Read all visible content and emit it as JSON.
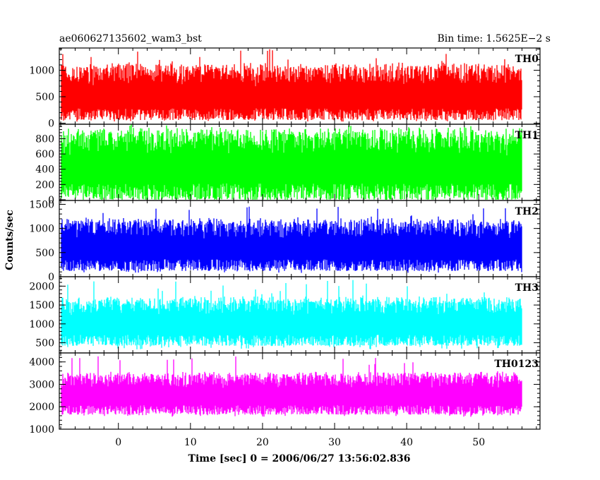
{
  "chart_data": {
    "type": "line",
    "title": "ae060627135602_wam3_bst",
    "subtitle": "Bin time: 1.5625E−2 s",
    "xlabel": "Time [sec] 0 = 2006/06/27 13:56:02.836",
    "ylabel": "Counts/sec",
    "xlim": [
      -8.2,
      58.5
    ],
    "x_ticks": [
      0,
      10,
      20,
      30,
      40,
      50
    ],
    "data_range": [
      -8,
      56
    ],
    "bin_time": 0.015625,
    "panels": [
      {
        "name": "TH0",
        "color": "#ff0000",
        "ylim": [
          -20,
          1420
        ],
        "yticks": [
          0,
          500,
          1000
        ],
        "mean": 500,
        "low": 60,
        "high": 1080,
        "spike_max": 1400,
        "min": 30
      },
      {
        "name": "TH1",
        "color": "#00ff00",
        "ylim": [
          -10,
          990
        ],
        "yticks": [
          0,
          200,
          400,
          600,
          800
        ],
        "mean": 430,
        "low": 0,
        "high": 890,
        "spike_max": 990,
        "min": 0
      },
      {
        "name": "TH2",
        "color": "#0000ff",
        "ylim": [
          0,
          1580
        ],
        "yticks": [
          0,
          500,
          1000,
          1500
        ],
        "mean": 600,
        "low": 120,
        "high": 1150,
        "spike_max": 1480,
        "min": 80
      },
      {
        "name": "TH3",
        "color": "#00ffff",
        "ylim": [
          230,
          2250
        ],
        "yticks": [
          500,
          1000,
          1500,
          2000
        ],
        "mean": 1000,
        "low": 420,
        "high": 1650,
        "spike_max": 2200,
        "min": 320
      },
      {
        "name": "TH0123",
        "color": "#ff00ff",
        "ylim": [
          1000,
          4400
        ],
        "yticks": [
          1000,
          2000,
          3000,
          4000
        ],
        "mean": 2500,
        "low": 1650,
        "high": 3450,
        "spike_max": 4300,
        "min": 1550
      }
    ]
  }
}
